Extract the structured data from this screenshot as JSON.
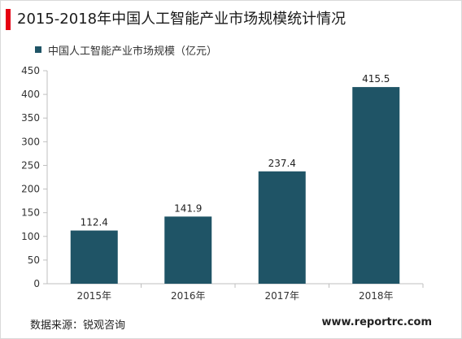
{
  "title": "2015-2018年中国人工智能产业市场规模统计情况",
  "source": "数据来源：锐观咨询",
  "watermark": "www.reportrc.com",
  "colors": {
    "accent": "#e60012",
    "bar": "#1f5466",
    "axis": "#bfbfbf"
  },
  "chart_data": {
    "type": "bar",
    "categories": [
      "2015年",
      "2016年",
      "2017年",
      "2018年"
    ],
    "series": [
      {
        "name": "中国人工智能产业市场规模（亿元）",
        "values": [
          112.4,
          141.9,
          237.4,
          415.5
        ]
      }
    ],
    "data_labels": [
      "112.4",
      "141.9",
      "237.4",
      "415.5"
    ],
    "ylim": [
      0,
      450
    ],
    "yticks": [
      "0",
      "50",
      "100",
      "150",
      "200",
      "250",
      "300",
      "350",
      "400",
      "450"
    ],
    "ytick_values": [
      0,
      50,
      100,
      150,
      200,
      250,
      300,
      350,
      400,
      450
    ],
    "grid": false,
    "legend": "top-left"
  }
}
